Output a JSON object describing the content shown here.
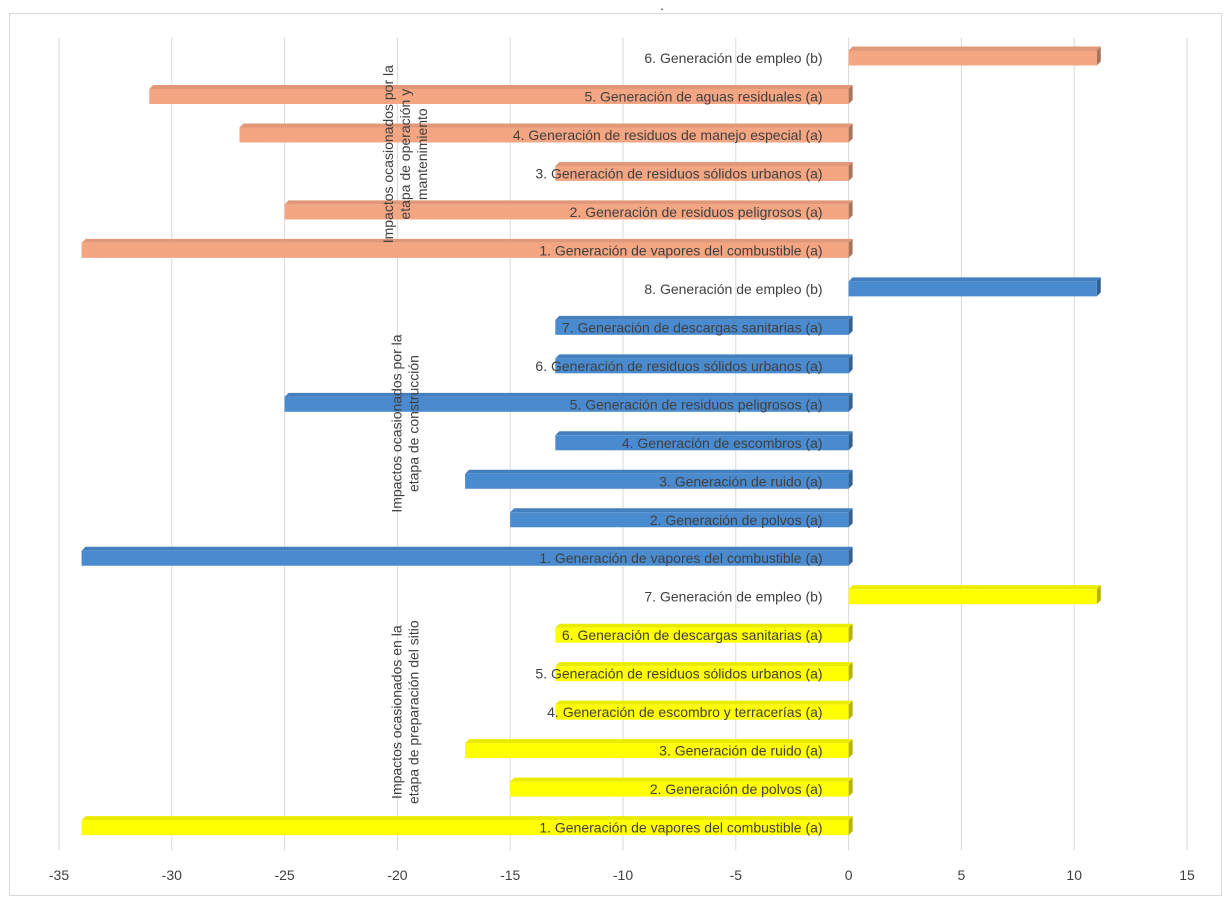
{
  "chart_data": {
    "type": "bar",
    "orientation": "horizontal",
    "title": "",
    "xlim": [
      -35,
      15
    ],
    "xticks": [
      -35,
      -30,
      -25,
      -20,
      -15,
      -10,
      -5,
      0,
      5,
      10,
      15
    ],
    "grid": true,
    "legend": "none",
    "groups": [
      {
        "label": "Impactos ocasionados por la etapa de operación y mantenimiento",
        "color": "#F4A582",
        "items": [
          {
            "label": "6. Generación de empleo (b)",
            "value": 11
          },
          {
            "label": "5. Generación de aguas residuales (a)",
            "value": -31
          },
          {
            "label": "4. Generación de residuos de manejo especial (a)",
            "value": -27
          },
          {
            "label": "3. Generación de residuos sólidos urbanos (a)",
            "value": -13
          },
          {
            "label": "2. Generación de residuos peligrosos (a)",
            "value": -25
          },
          {
            "label": "1. Generación de vapores del combustible (a)",
            "value": -34
          }
        ]
      },
      {
        "label": "Impactos ocasionados por la etapa de construcción",
        "color": "#4A8BD0",
        "items": [
          {
            "label": "8. Generación de empleo (b)",
            "value": 11
          },
          {
            "label": "7. Generación de descargas sanitarias (a)",
            "value": -13
          },
          {
            "label": "6. Generación de residuos sólidos urbanos (a)",
            "value": -13
          },
          {
            "label": "5. Generación de residuos peligrosos (a)",
            "value": -25
          },
          {
            "label": "4. Generación de escombros (a)",
            "value": -13
          },
          {
            "label": "3. Generación de ruido (a)",
            "value": -17
          },
          {
            "label": "2. Generación de polvos (a)",
            "value": -15
          },
          {
            "label": "1. Generación de vapores del combustible (a)",
            "value": -34
          }
        ]
      },
      {
        "label": "Impactos ocasionados en la etapa de preparación del sitio",
        "color": "#FFFF00",
        "items": [
          {
            "label": "7. Generación de empleo (b)",
            "value": 11
          },
          {
            "label": "6. Generación de descargas sanitarias (a)",
            "value": -13
          },
          {
            "label": "5. Generación de residuos sólidos urbanos (a)",
            "value": -13
          },
          {
            "label": "4. Generación de escombro y terracerías (a)",
            "value": -13
          },
          {
            "label": "3. Generación de ruido (a)",
            "value": -17
          },
          {
            "label": "2. Generación de polvos (a)",
            "value": -15
          },
          {
            "label": "1. Generación de vapores del combustible (a)",
            "value": -34
          }
        ]
      }
    ]
  }
}
